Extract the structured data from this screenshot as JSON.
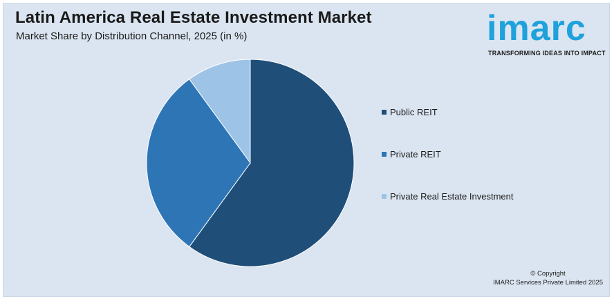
{
  "header": {
    "title": "Latin America Real Estate Investment Market",
    "subtitle": "Market Share by Distribution Channel, 2025 (in %)"
  },
  "logo": {
    "wordmark": "imarc",
    "tagline": "TRANSFORMING IDEAS INTO IMPACT"
  },
  "footer": {
    "copyright": "© Copyright",
    "company": "IMARC Services Private Limited 2025"
  },
  "colors": {
    "background": "#dbe5f1",
    "public_reit": "#1f4e79",
    "private_reit": "#2e75b6",
    "private_real_estate": "#9dc3e6",
    "logo": "#1fa2dc"
  },
  "chart_data": {
    "type": "pie",
    "title": "Latin America Real Estate Investment Market",
    "subtitle": "Market Share by Distribution Channel, 2025 (in %)",
    "legend_position": "right",
    "categories": [
      "Public REIT",
      "Private REIT",
      "Private Real Estate Investment"
    ],
    "values": [
      60,
      30,
      10
    ],
    "colors": [
      "#1f4e79",
      "#2e75b6",
      "#9dc3e6"
    ]
  }
}
